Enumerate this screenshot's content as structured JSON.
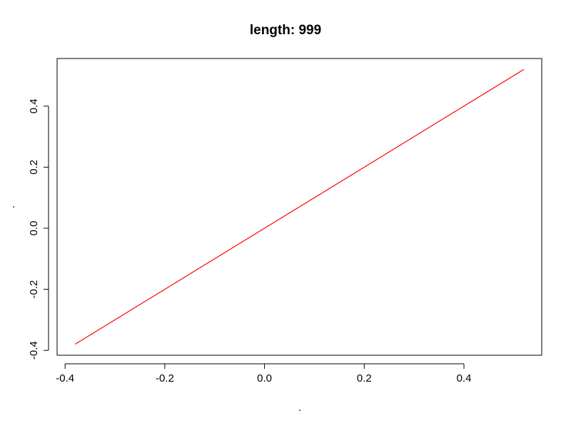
{
  "chart_data": {
    "type": "line",
    "title": "length: 999",
    "xlabel": ".",
    "ylabel": ".",
    "xlim": [
      -0.416,
      0.556
    ],
    "ylim": [
      -0.416,
      0.556
    ],
    "x_ticks": [
      -0.4,
      -0.2,
      0.0,
      0.2,
      0.4
    ],
    "x_tick_labels": [
      "-0.4",
      "-0.2",
      "0.0",
      "0.2",
      "0.4"
    ],
    "y_ticks": [
      -0.4,
      -0.2,
      0.0,
      0.2,
      0.4
    ],
    "y_tick_labels": [
      "-0.4",
      "-0.2",
      "0.0",
      "0.2",
      "0.4"
    ],
    "grid": false,
    "series": [
      {
        "color": "#ff0000",
        "x": [
          -0.38,
          0.52
        ],
        "y": [
          -0.38,
          0.52
        ]
      }
    ]
  }
}
